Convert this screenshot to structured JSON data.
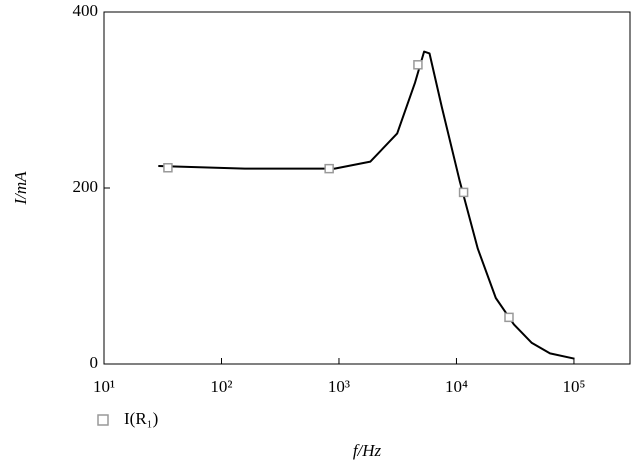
{
  "chart_data": {
    "type": "line",
    "xlabel": "f/Hz",
    "ylabel": "I/mA",
    "log_x": true,
    "xlim": [
      10,
      300000
    ],
    "ylim": [
      0,
      400
    ],
    "xticks": [
      {
        "value": 10,
        "label": "10¹"
      },
      {
        "value": 100,
        "label": "10²"
      },
      {
        "value": 1000,
        "label": "10³"
      },
      {
        "value": 10000,
        "label": "10⁴"
      },
      {
        "value": 100000,
        "label": "10⁵"
      }
    ],
    "yticks": [
      0,
      200,
      400
    ],
    "series": [
      {
        "name": "I(R₁)",
        "color": "#999999",
        "marker": "square",
        "x": [
          35,
          825,
          4700,
          11500,
          28000
        ],
        "values": [
          223,
          222,
          340,
          195,
          53
        ]
      }
    ],
    "curve": {
      "color": "#000000",
      "x": [
        29,
        158,
        920,
        1850,
        3130,
        4450,
        5300,
        5900,
        7500,
        10700,
        15200,
        21600,
        30800,
        43800,
        62500,
        101000
      ],
      "values": [
        225,
        222,
        222,
        230,
        262,
        320,
        355,
        353,
        292,
        207,
        131,
        75,
        45,
        24,
        12,
        6
      ]
    }
  }
}
